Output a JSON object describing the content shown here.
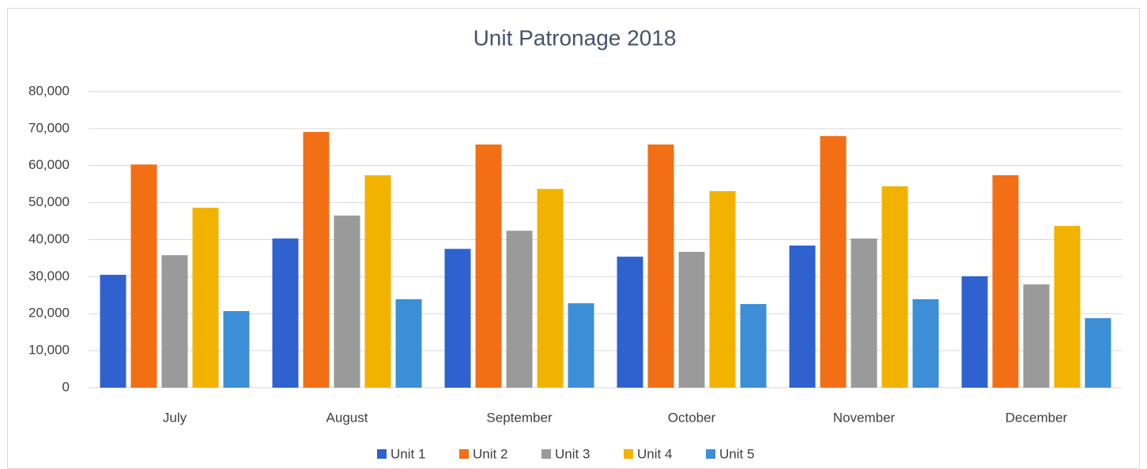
{
  "chart_data": {
    "type": "bar",
    "title": "Unit Patronage 2018",
    "categories": [
      "July",
      "August",
      "September",
      "October",
      "November",
      "December"
    ],
    "series": [
      {
        "name": "Unit 1",
        "color": "#2f62cf",
        "values": [
          30500,
          40300,
          37500,
          35400,
          38400,
          30100
        ]
      },
      {
        "name": "Unit 2",
        "color": "#f26f16",
        "values": [
          60300,
          69100,
          65700,
          65700,
          68000,
          57400
        ]
      },
      {
        "name": "Unit 3",
        "color": "#9a9a9a",
        "values": [
          35800,
          46500,
          42400,
          36700,
          40300,
          27900
        ]
      },
      {
        "name": "Unit 4",
        "color": "#f2b300",
        "values": [
          48600,
          57400,
          53700,
          53100,
          54400,
          43700
        ]
      },
      {
        "name": "Unit 5",
        "color": "#3c8fd6",
        "values": [
          20700,
          23900,
          22800,
          22600,
          23900,
          18800
        ]
      }
    ],
    "ylim": [
      0,
      80000
    ],
    "yticks": [
      0,
      {
        "value": 10000,
        "label": "10,000"
      },
      {
        "value": 20000,
        "label": "20,000"
      },
      {
        "value": 30000,
        "label": "30,000"
      },
      {
        "value": 40000,
        "label": "40,000"
      },
      {
        "value": 50000,
        "label": "50,000"
      },
      {
        "value": 60000,
        "label": "60,000"
      },
      {
        "value": 70000,
        "label": "70,000"
      },
      {
        "value": 80000,
        "label": "80,000"
      }
    ],
    "grid": true,
    "legend": "bottom"
  }
}
